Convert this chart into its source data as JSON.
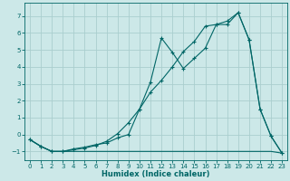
{
  "xlabel": "Humidex (Indice chaleur)",
  "bg_color": "#cce8e8",
  "grid_color": "#aacece",
  "line_color": "#006666",
  "xlim": [
    -0.5,
    23.5
  ],
  "ylim": [
    -1.5,
    7.8
  ],
  "yticks": [
    -1,
    0,
    1,
    2,
    3,
    4,
    5,
    6,
    7
  ],
  "xticks": [
    0,
    1,
    2,
    3,
    4,
    5,
    6,
    7,
    8,
    9,
    10,
    11,
    12,
    13,
    14,
    15,
    16,
    17,
    18,
    19,
    20,
    21,
    22,
    23
  ],
  "s1_x": [
    0,
    1,
    2,
    3,
    4,
    5,
    6,
    7,
    8,
    9,
    10,
    11,
    12,
    13,
    14,
    15,
    16,
    17,
    18,
    19,
    20,
    21,
    22,
    23
  ],
  "s1_y": [
    -0.3,
    -0.7,
    -1.0,
    -1.0,
    -1.0,
    -1.0,
    -1.0,
    -1.0,
    -1.0,
    -1.0,
    -1.0,
    -1.0,
    -1.0,
    -1.0,
    -1.0,
    -1.0,
    -1.0,
    -1.0,
    -1.0,
    -1.0,
    -1.0,
    -1.0,
    -1.0,
    -1.1
  ],
  "s2_x": [
    0,
    1,
    2,
    3,
    4,
    5,
    6,
    7,
    8,
    9,
    10,
    11,
    12,
    13,
    14,
    15,
    16,
    17,
    18,
    19,
    20,
    21,
    22,
    23
  ],
  "s2_y": [
    -0.3,
    -0.7,
    -1.0,
    -1.0,
    -0.85,
    -0.75,
    -0.6,
    -0.5,
    -0.2,
    0.0,
    1.5,
    2.5,
    3.2,
    4.0,
    4.9,
    5.5,
    6.4,
    6.5,
    6.7,
    7.2,
    5.6,
    1.5,
    -0.1,
    -1.1
  ],
  "s3_x": [
    0,
    1,
    2,
    3,
    4,
    5,
    6,
    7,
    8,
    9,
    10,
    11,
    12,
    13,
    14,
    15,
    16,
    17,
    18,
    19,
    20,
    21,
    22,
    23
  ],
  "s3_y": [
    -0.3,
    -0.7,
    -1.0,
    -1.0,
    -0.9,
    -0.8,
    -0.65,
    -0.4,
    0.05,
    0.7,
    1.5,
    3.1,
    5.7,
    4.85,
    3.9,
    4.5,
    5.1,
    6.5,
    6.5,
    7.2,
    5.6,
    1.5,
    -0.1,
    -1.1
  ]
}
